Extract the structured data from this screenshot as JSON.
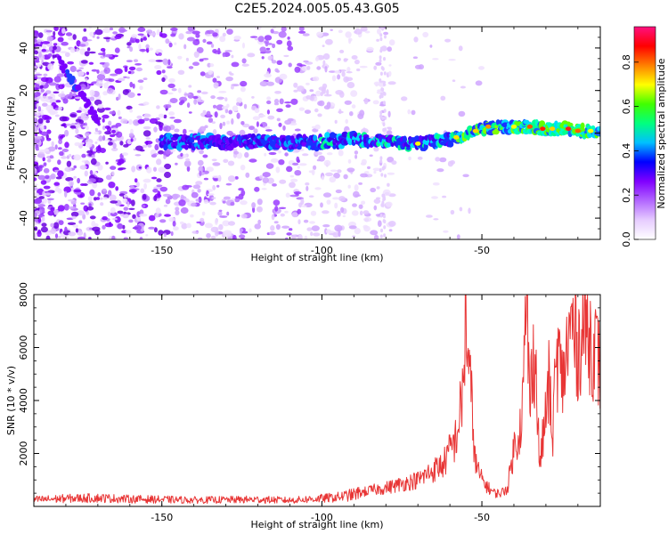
{
  "figure": {
    "title": "C2E5.2024.005.05.43.G05"
  },
  "chart_data": [
    {
      "type": "heatmap",
      "xlabel": "Height of straight line (km)",
      "ylabel": "Frequency (Hz)",
      "xlim": [
        -190,
        -13
      ],
      "ylim": [
        -50,
        50
      ],
      "xticks": [
        -150,
        -100,
        -50
      ],
      "yticks": [
        -40,
        -20,
        0,
        20,
        40
      ],
      "ridge": {
        "x": [
          -150,
          -140,
          -130,
          -120,
          -110,
          -100,
          -90,
          -80,
          -70,
          -60,
          -50,
          -45,
          -40,
          -35,
          -30,
          -25,
          -20,
          -15
        ],
        "y": [
          -4,
          -4,
          -4,
          -4,
          -5,
          -4,
          -3,
          -4,
          -5,
          -3,
          2,
          3,
          3,
          3,
          2,
          2,
          1,
          1
        ]
      },
      "colorbar": {
        "label": "Normalized spectral amplitude",
        "range": [
          0,
          0.96
        ],
        "ticks": [
          0.0,
          0.2,
          0.4,
          0.6,
          0.8
        ],
        "colors": [
          "#ffffff",
          "#e6ccff",
          "#b266ff",
          "#8000ff",
          "#0000ff",
          "#00c0ff",
          "#00ff80",
          "#40ff00",
          "#ffff00",
          "#ff8000",
          "#ff0000",
          "#ff1080"
        ]
      }
    },
    {
      "type": "line",
      "xlabel": "Height of straight line (km)",
      "ylabel": "SNR (10 * v/v)",
      "xlim": [
        -190,
        -13
      ],
      "ylim": [
        0,
        8000
      ],
      "xticks": [
        -150,
        -100,
        -50
      ],
      "yticks": [
        2000,
        4000,
        6000,
        8000
      ],
      "color": "#e83535",
      "series": [
        {
          "x": [
            -190,
            -180,
            -170,
            -160,
            -150,
            -140,
            -130,
            -120,
            -110,
            -100,
            -95,
            -90,
            -85,
            -80,
            -75,
            -70,
            -66,
            -62,
            -58,
            -56,
            -55,
            -54,
            -53,
            -52,
            -50,
            -48,
            -46,
            -44,
            -42,
            -40,
            -38,
            -37,
            -36,
            -35,
            -34,
            -33,
            -32,
            -30,
            -29,
            -28,
            -27,
            -26,
            -25,
            -24,
            -22,
            -20,
            -18,
            -16,
            -14,
            -13
          ],
          "y": [
            250,
            300,
            320,
            280,
            260,
            240,
            250,
            260,
            230,
            300,
            350,
            450,
            600,
            700,
            850,
            1000,
            1300,
            1600,
            2600,
            4200,
            7200,
            5000,
            3600,
            1600,
            1000,
            700,
            500,
            500,
            700,
            2200,
            3000,
            4500,
            8000,
            3600,
            6200,
            4800,
            1500,
            3500,
            4800,
            2300,
            5100,
            5700,
            4600,
            5400,
            6900,
            6000,
            6900,
            6300,
            5800,
            5000
          ]
        }
      ]
    }
  ]
}
